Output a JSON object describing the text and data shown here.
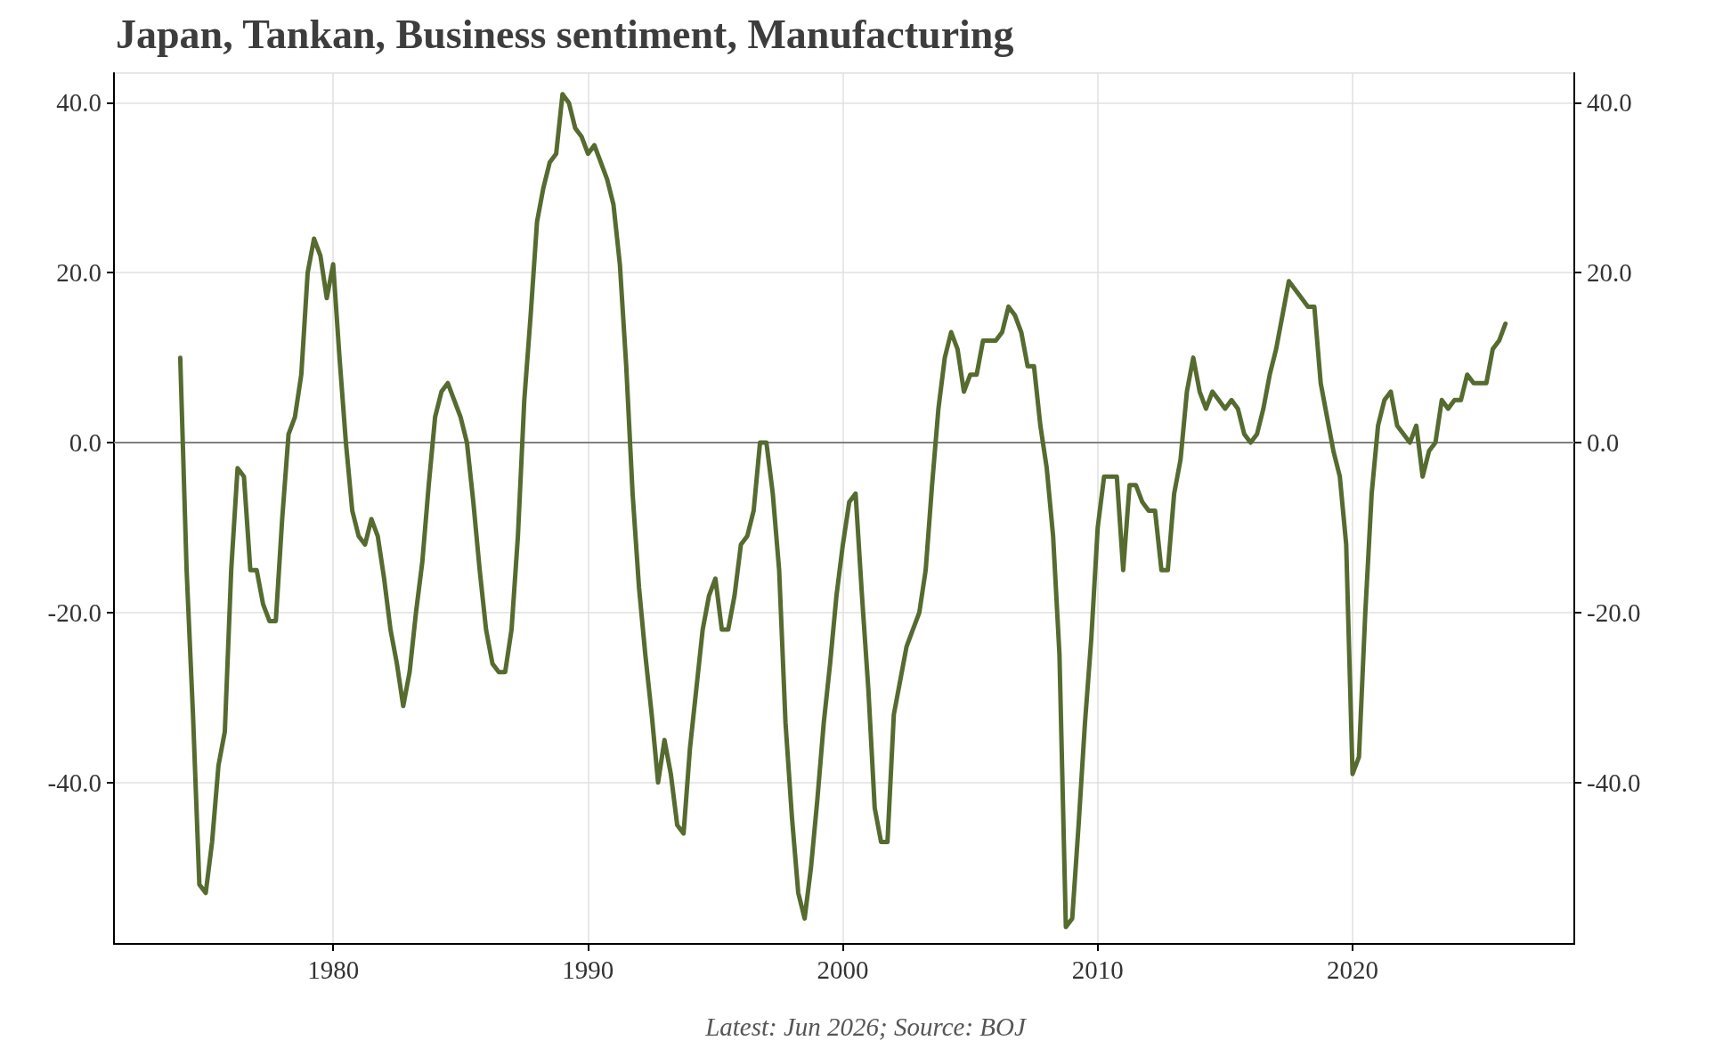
{
  "chart_data": {
    "type": "line",
    "title": "Japan, Tankan, Business sentiment, Manufacturing",
    "annotations": [
      "Latest: Jun 2026; Source: BOJ"
    ],
    "x": [
      1974,
      1974.25,
      1974.5,
      1974.75,
      1975,
      1975.25,
      1975.5,
      1975.75,
      1976,
      1976.25,
      1976.5,
      1976.75,
      1977,
      1977.25,
      1977.5,
      1977.75,
      1978,
      1978.25,
      1978.5,
      1978.75,
      1979,
      1979.25,
      1979.5,
      1979.75,
      1980,
      1980.25,
      1980.5,
      1980.75,
      1981,
      1981.25,
      1981.5,
      1981.75,
      1982,
      1982.25,
      1982.5,
      1982.75,
      1983,
      1983.25,
      1983.5,
      1983.75,
      1984,
      1984.25,
      1984.5,
      1984.75,
      1985,
      1985.25,
      1985.5,
      1985.75,
      1986,
      1986.25,
      1986.5,
      1986.75,
      1987,
      1987.25,
      1987.5,
      1987.75,
      1988,
      1988.25,
      1988.5,
      1988.75,
      1989,
      1989.25,
      1989.5,
      1989.75,
      1990,
      1990.25,
      1990.5,
      1990.75,
      1991,
      1991.25,
      1991.5,
      1991.75,
      1992,
      1992.25,
      1992.5,
      1992.75,
      1993,
      1993.25,
      1993.5,
      1993.75,
      1994,
      1994.25,
      1994.5,
      1994.75,
      1995,
      1995.25,
      1995.5,
      1995.75,
      1996,
      1996.25,
      1996.5,
      1996.75,
      1997,
      1997.25,
      1997.5,
      1997.75,
      1998,
      1998.25,
      1998.5,
      1998.75,
      1999,
      1999.25,
      1999.5,
      1999.75,
      2000,
      2000.25,
      2000.5,
      2000.75,
      2001,
      2001.25,
      2001.5,
      2001.75,
      2002,
      2002.25,
      2002.5,
      2002.75,
      2003,
      2003.25,
      2003.5,
      2003.75,
      2004,
      2004.25,
      2004.5,
      2004.75,
      2005,
      2005.25,
      2005.5,
      2005.75,
      2006,
      2006.25,
      2006.5,
      2006.75,
      2007,
      2007.25,
      2007.5,
      2007.75,
      2008,
      2008.25,
      2008.5,
      2008.75,
      2009,
      2009.25,
      2009.5,
      2009.75,
      2010,
      2010.25,
      2010.5,
      2010.75,
      2011,
      2011.25,
      2011.5,
      2011.75,
      2012,
      2012.25,
      2012.5,
      2012.75,
      2013,
      2013.25,
      2013.5,
      2013.75,
      2014,
      2014.25,
      2014.5,
      2014.75,
      2015,
      2015.25,
      2015.5,
      2015.75,
      2016,
      2016.25,
      2016.5,
      2016.75,
      2017,
      2017.25,
      2017.5,
      2017.75,
      2018,
      2018.25,
      2018.5,
      2018.75,
      2019,
      2019.25,
      2019.5,
      2019.75,
      2020,
      2020.25,
      2020.5,
      2020.75,
      2021,
      2021.25,
      2021.5,
      2021.75,
      2022,
      2022.25,
      2022.5,
      2022.75,
      2023,
      2023.25,
      2023.5,
      2023.75,
      2024,
      2024.25,
      2024.5,
      2024.75,
      2025,
      2025.25,
      2025.5,
      2025.75,
      2026
    ],
    "series": [
      {
        "color": "#566b2f",
        "values": [
          10,
          -15,
          -32,
          -52,
          -53,
          -47,
          -38,
          -34,
          -15,
          -3,
          -4,
          -15,
          -15,
          -19,
          -21,
          -21,
          -9,
          1,
          3,
          8,
          20,
          24,
          22,
          17,
          21,
          10,
          0,
          -8,
          -11,
          -12,
          -9,
          -11,
          -16,
          -22,
          -26,
          -31,
          -27,
          -20,
          -14,
          -5,
          3,
          6,
          7,
          5,
          3,
          0,
          -7,
          -15,
          -22,
          -26,
          -27,
          -27,
          -22,
          -11,
          5,
          15,
          26,
          30,
          33,
          34,
          41,
          40,
          37,
          36,
          34,
          35,
          33,
          31,
          28,
          21,
          9,
          -6,
          -17,
          -25,
          -32,
          -40,
          -35,
          -39,
          -45,
          -46,
          -36,
          -29,
          -22,
          -18,
          -16,
          -22,
          -22,
          -18,
          -12,
          -11,
          -8,
          0,
          0,
          -6,
          -15,
          -33,
          -44,
          -53,
          -56,
          -50,
          -42,
          -33,
          -26,
          -18,
          -12,
          -7,
          -6,
          -18,
          -29,
          -43,
          -47,
          -47,
          -32,
          -28,
          -24,
          -22,
          -20,
          -15,
          -5,
          4,
          10,
          13,
          11,
          6,
          8,
          8,
          12,
          12,
          12,
          13,
          16,
          15,
          13,
          9,
          9,
          2,
          -3,
          -11,
          -25,
          -57,
          -56,
          -45,
          -33,
          -23,
          -10,
          -4,
          -4,
          -4,
          -15,
          -5,
          -5,
          -7,
          -8,
          -8,
          -15,
          -15,
          -6,
          -2,
          6,
          10,
          6,
          4,
          6,
          5,
          4,
          5,
          4,
          1,
          0,
          1,
          4,
          8,
          11,
          15,
          19,
          18,
          17,
          16,
          16,
          7,
          3,
          -1,
          -4,
          -12,
          -39,
          -37,
          -20,
          -6,
          2,
          5,
          6,
          2,
          1,
          0,
          2,
          -4,
          -1,
          0,
          5,
          4,
          5,
          5,
          8,
          7,
          7,
          7,
          11,
          12,
          14
        ]
      }
    ],
    "xlim": [
      1971.4,
      2028.7
    ],
    "xticks": [
      1980,
      1990,
      2000,
      2010,
      2020
    ],
    "ylim": [
      -59,
      43.5
    ],
    "yticks": [
      {
        "value": -40,
        "label": "-40.0"
      },
      {
        "value": -20,
        "label": "-20.0"
      },
      {
        "value": 0,
        "label": "0.0"
      },
      {
        "value": 20,
        "label": "20.0"
      },
      {
        "value": 40,
        "label": "40.0"
      }
    ],
    "y2lim": [
      -59,
      43.5
    ],
    "y2ticks": [
      {
        "value": -40,
        "label": "-40.0"
      },
      {
        "value": -20,
        "label": "-20.0"
      },
      {
        "value": 0,
        "label": "0.0"
      },
      {
        "value": 20,
        "label": "20.0"
      },
      {
        "value": 40,
        "label": "40.0"
      }
    ],
    "ref_lines": [
      {
        "axis": "y",
        "value": 0,
        "color": "#808080"
      }
    ],
    "grid": true,
    "marker": "none",
    "line_style": "solid"
  }
}
